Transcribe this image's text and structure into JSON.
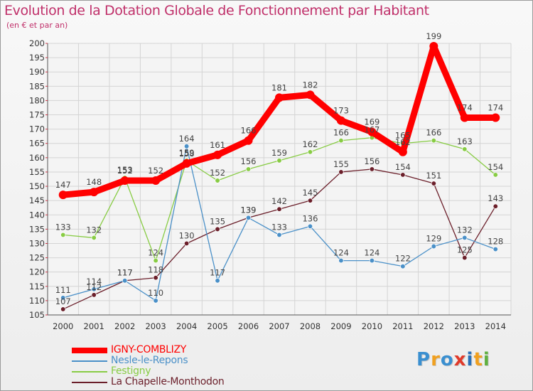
{
  "chart_data": {
    "type": "line",
    "title": "Evolution de la Dotation Globale de Fonctionnement par Habitant",
    "subtitle": "(en € et par an)",
    "xlabel": "",
    "ylabel": "",
    "categories": [
      "2000",
      "2001",
      "2002",
      "2003",
      "2004",
      "2005",
      "2006",
      "2007",
      "2008",
      "2009",
      "2010",
      "2011",
      "2012",
      "2013",
      "2014"
    ],
    "ylim": [
      105,
      200
    ],
    "yticks": [
      105,
      110,
      115,
      120,
      125,
      130,
      135,
      140,
      145,
      150,
      155,
      160,
      165,
      170,
      175,
      180,
      185,
      190,
      195,
      200
    ],
    "grid": true,
    "legend_position": "bottom-left",
    "series": [
      {
        "name": "IGNY-COMBLIZY",
        "color": "#ff0000",
        "values": [
          147,
          148,
          152,
          152,
          158,
          161,
          166,
          181,
          182,
          173,
          169,
          162,
          199,
          174,
          174
        ]
      },
      {
        "name": "Nesle-le-Repons",
        "color": "#4a90c8",
        "values": [
          111,
          114,
          117,
          110,
          164,
          117,
          139,
          133,
          136,
          124,
          124,
          122,
          129,
          132,
          128
        ]
      },
      {
        "name": "Festigny",
        "color": "#88cc44",
        "values": [
          133,
          132,
          153,
          124,
          159,
          152,
          156,
          159,
          162,
          166,
          167,
          165,
          166,
          163,
          154
        ]
      },
      {
        "name": "La Chapelle-Monthodon",
        "color": "#6b1f2a",
        "values": [
          107,
          112,
          117,
          118,
          130,
          135,
          139,
          142,
          145,
          155,
          156,
          154,
          151,
          125,
          143
        ]
      }
    ]
  },
  "logo": {
    "letters": [
      "P",
      "r",
      "o",
      "x",
      "i",
      "t",
      "i"
    ],
    "colors": [
      "#3a8fd0",
      "#f0a020",
      "#3a8fd0",
      "#e03a2a",
      "#2a70b8",
      "#f0a020",
      "#60b040"
    ]
  }
}
